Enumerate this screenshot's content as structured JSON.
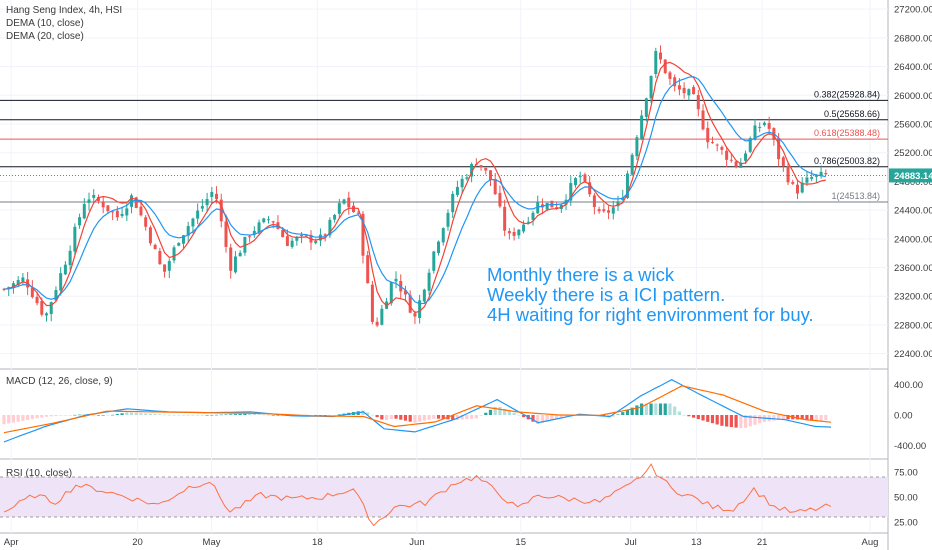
{
  "header": {
    "title": "Hang Seng Index, 4h, HSI",
    "indicators": [
      "DEMA (10, close)",
      "DEMA (20, close)"
    ]
  },
  "annotation": [
    "Monthly there is a wick",
    "Weekly there is a ICI pattern.",
    "4H waiting for right environment for buy."
  ],
  "macd_label": "MACD (12, 26, close, 9)",
  "rsi_label": "RSI (10, close)",
  "colors": {
    "up": "#26a69a",
    "down": "#ef5350",
    "dema_fast": "#f44336",
    "dema_slow": "#2196f3",
    "macd_line": "#2196f3",
    "signal_line": "#ff6d00",
    "rsi_line": "#ff7043",
    "rsi_band": "#efe3f7",
    "price_badge": "#26a69a",
    "annotation": "#2196f3"
  },
  "chart_data": [
    {
      "type": "candlestick",
      "title": "Hang Seng Index, 4h, HSI",
      "last_price": "24883.14",
      "y_ticks": [
        "27200.00",
        "26800.00",
        "26400.00",
        "26000.00",
        "25600.00",
        "25200.00",
        "24800.00",
        "24400.00",
        "24000.00",
        "23600.00",
        "23200.00",
        "22800.00",
        "22400.00"
      ],
      "ylim": [
        22200,
        27300
      ],
      "x_ticks": [
        {
          "label": "Apr",
          "x": 0.7
        },
        {
          "label": "20",
          "x": 13
        },
        {
          "label": "May",
          "x": 20.2
        },
        {
          "label": "18",
          "x": 30.5
        },
        {
          "label": "Jun",
          "x": 40.2
        },
        {
          "label": "15",
          "x": 50.3
        },
        {
          "label": "Jul",
          "x": 61
        },
        {
          "label": "13",
          "x": 67.4
        },
        {
          "label": "21",
          "x": 73.8
        },
        {
          "label": "Aug",
          "x": 84.3
        }
      ],
      "price_path": [
        [
          0,
          23300
        ],
        [
          2,
          23450
        ],
        [
          4,
          22900
        ],
        [
          6,
          23700
        ],
        [
          8,
          24600
        ],
        [
          9.5,
          24500
        ],
        [
          11,
          24300
        ],
        [
          12.5,
          24600
        ],
        [
          14,
          24100
        ],
        [
          15.5,
          23500
        ],
        [
          17,
          24000
        ],
        [
          19,
          24400
        ],
        [
          20.5,
          24700
        ],
        [
          22,
          23600
        ],
        [
          24,
          24100
        ],
        [
          26,
          24300
        ],
        [
          27.5,
          23950
        ],
        [
          29,
          24000
        ],
        [
          31,
          24000
        ],
        [
          33,
          24550
        ],
        [
          34.5,
          24300
        ],
        [
          36,
          22700
        ],
        [
          38,
          23500
        ],
        [
          40,
          22900
        ],
        [
          42,
          23900
        ],
        [
          44,
          24700
        ],
        [
          46,
          25100
        ],
        [
          47.5,
          24800
        ],
        [
          49,
          24000
        ],
        [
          50.5,
          24200
        ],
        [
          52,
          24500
        ],
        [
          54,
          24450
        ],
        [
          56,
          24900
        ],
        [
          58,
          24300
        ],
        [
          60,
          24500
        ],
        [
          62,
          25700
        ],
        [
          63.5,
          26600
        ],
        [
          65.2,
          26100
        ],
        [
          67,
          26000
        ],
        [
          68.5,
          25400
        ],
        [
          70,
          25200
        ],
        [
          71.5,
          25000
        ],
        [
          73,
          25500
        ],
        [
          74.2,
          25650
        ],
        [
          75.5,
          25100
        ],
        [
          77,
          24650
        ],
        [
          78.5,
          24850
        ],
        [
          80,
          24883
        ]
      ],
      "fib_levels": [
        {
          "label": "0.382(25928.84)",
          "value": 25928.84,
          "color": "#131722"
        },
        {
          "label": "0.5(25658.66)",
          "value": 25658.66,
          "color": "#131722"
        },
        {
          "label": "0.618(25388.48)",
          "value": 25388.48,
          "color": "#ef5350"
        },
        {
          "label": "0.786(25003.82)",
          "value": 25003.82,
          "color": "#131722"
        },
        {
          "label": "1(24513.84)",
          "value": 24513.84,
          "color": "#787b86"
        }
      ]
    },
    {
      "type": "line",
      "title": "MACD (12, 26, close, 9)",
      "y_ticks": [
        "400.00",
        "0.00",
        "-400.00"
      ],
      "ylim": [
        -560,
        560
      ],
      "macd_path": [
        [
          0,
          -350
        ],
        [
          4,
          -150
        ],
        [
          8,
          0
        ],
        [
          12,
          80
        ],
        [
          16,
          40
        ],
        [
          20,
          30
        ],
        [
          24,
          40
        ],
        [
          28,
          -10
        ],
        [
          32,
          -20
        ],
        [
          35,
          40
        ],
        [
          37,
          -180
        ],
        [
          40,
          -220
        ],
        [
          44,
          -50
        ],
        [
          48,
          200
        ],
        [
          52,
          -100
        ],
        [
          56,
          10
        ],
        [
          59,
          -20
        ],
        [
          62,
          250
        ],
        [
          65,
          460
        ],
        [
          68,
          250
        ],
        [
          72,
          -20
        ],
        [
          76,
          -60
        ],
        [
          79,
          -150
        ],
        [
          81,
          -160
        ]
      ],
      "signal_path": [
        [
          0,
          -230
        ],
        [
          5,
          -100
        ],
        [
          10,
          50
        ],
        [
          15,
          40
        ],
        [
          20,
          30
        ],
        [
          25,
          20
        ],
        [
          30,
          -10
        ],
        [
          35,
          -20
        ],
        [
          38,
          -150
        ],
        [
          42,
          -90
        ],
        [
          46,
          120
        ],
        [
          50,
          40
        ],
        [
          54,
          0
        ],
        [
          58,
          -5
        ],
        [
          62,
          100
        ],
        [
          66,
          380
        ],
        [
          70,
          260
        ],
        [
          74,
          50
        ],
        [
          78,
          -60
        ],
        [
          81,
          -100
        ]
      ]
    },
    {
      "type": "line",
      "title": "RSI (10, close)",
      "y_ticks": [
        "75.00",
        "50.00",
        "25.00"
      ],
      "ylim": [
        15,
        85
      ],
      "band": [
        30,
        70
      ],
      "rsi_path": [
        [
          0,
          35
        ],
        [
          3,
          52
        ],
        [
          5,
          45
        ],
        [
          7,
          62
        ],
        [
          9,
          58
        ],
        [
          12,
          50
        ],
        [
          15,
          42
        ],
        [
          18,
          60
        ],
        [
          20,
          66
        ],
        [
          22,
          35
        ],
        [
          25,
          52
        ],
        [
          28,
          48
        ],
        [
          31,
          50
        ],
        [
          34,
          58
        ],
        [
          36,
          22
        ],
        [
          38,
          40
        ],
        [
          41,
          44
        ],
        [
          44,
          65
        ],
        [
          46,
          70
        ],
        [
          48,
          55
        ],
        [
          50,
          38
        ],
        [
          52,
          52
        ],
        [
          55,
          48
        ],
        [
          58,
          45
        ],
        [
          61,
          62
        ],
        [
          63,
          80
        ],
        [
          65,
          58
        ],
        [
          67,
          50
        ],
        [
          69,
          40
        ],
        [
          71,
          38
        ],
        [
          73,
          58
        ],
        [
          75,
          40
        ],
        [
          77,
          34
        ],
        [
          79,
          38
        ],
        [
          81,
          42
        ]
      ]
    }
  ]
}
